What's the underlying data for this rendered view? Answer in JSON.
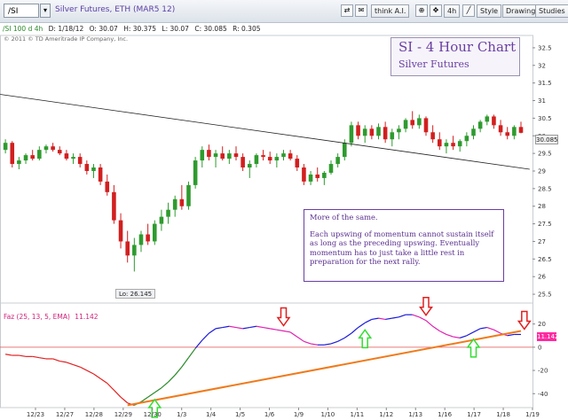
{
  "toolbar": {
    "symbol": "/SI",
    "description": "Silver Futures, ETH (MAR5 12)",
    "thinkai_label": "think A.I.",
    "period_label": "4h",
    "style_label": "Style",
    "drawings_label": "Drawings",
    "studies_label": "Studies"
  },
  "infobar": {
    "symbol_period": "/SI 100 d 4h",
    "date": "D: 1/18/12",
    "open": "O: 30.07",
    "high": "H: 30.375",
    "low": "L: 30.07",
    "close": "C: 30.085",
    "range": "R: 0.305"
  },
  "copyright": "© 2011 © TD Ameritrade IP Company, Inc.",
  "title": {
    "main": "SI - 4 Hour Chart",
    "sub": "Silver Futures"
  },
  "note": {
    "p1": "More of the same.",
    "p2": "Each upswing of momentum cannot sustain itself as long as the preceding upswing. Eventually momentum has to just take a little rest in preparation for the next rally."
  },
  "price_tag": "30.085",
  "lo_label": "Lo: 26.145",
  "indicator": {
    "label": "Faz (25, 13, 5, EMA)",
    "value_text": "11.142",
    "value_tag": "11.142"
  },
  "colors": {
    "up_candle": "#2e9b2e",
    "down_candle": "#d21f1f",
    "trendline": "#222222",
    "momentum_trend": "#f07a1a",
    "momentum_blue": "#1a1ad8",
    "momentum_magenta": "#e020b0",
    "momentum_red": "#e02020",
    "momentum_green": "#2a8a2a",
    "up_arrow": "#33dd33",
    "down_arrow": "#e02020",
    "zero_line": "#e05050"
  },
  "chart_data": [
    {
      "type": "candlestick",
      "title": "SI - 4 Hour Chart",
      "subtitle": "Silver Futures",
      "y_ticks": [
        "32.5",
        "32",
        "31.5",
        "31",
        "30.5",
        "30",
        "29.5",
        "29",
        "28.5",
        "28",
        "27.5",
        "27",
        "26.5",
        "26",
        "25.5"
      ],
      "ylim": [
        25.3,
        32.8
      ],
      "x_ticks": [
        "12/23",
        "12/27",
        "12/28",
        "12/29",
        "12/30",
        "1/3",
        "1/4",
        "1/5",
        "1/6",
        "1/9",
        "1/10",
        "1/11",
        "1/12",
        "1/13",
        "1/16",
        "1/17",
        "1/18",
        "1/19"
      ],
      "low_annotation": "Lo: 26.145",
      "last_price": "30.085",
      "candles": [
        [
          29.6,
          29.9,
          29.5,
          29.8
        ],
        [
          29.8,
          29.85,
          29.1,
          29.2
        ],
        [
          29.2,
          29.4,
          29.05,
          29.3
        ],
        [
          29.3,
          29.5,
          29.2,
          29.45
        ],
        [
          29.45,
          29.6,
          29.3,
          29.35
        ],
        [
          29.35,
          29.7,
          29.3,
          29.6
        ],
        [
          29.6,
          29.75,
          29.5,
          29.7
        ],
        [
          29.7,
          29.8,
          29.55,
          29.6
        ],
        [
          29.6,
          29.7,
          29.45,
          29.5
        ],
        [
          29.5,
          29.6,
          29.3,
          29.35
        ],
        [
          29.35,
          29.5,
          29.2,
          29.4
        ],
        [
          29.4,
          29.5,
          29.1,
          29.2
        ],
        [
          29.2,
          29.3,
          28.9,
          29.0
        ],
        [
          29.0,
          29.2,
          28.8,
          29.1
        ],
        [
          29.1,
          29.2,
          28.6,
          28.7
        ],
        [
          28.7,
          28.9,
          28.3,
          28.4
        ],
        [
          28.4,
          28.6,
          27.5,
          27.6
        ],
        [
          27.6,
          27.8,
          26.8,
          27.0
        ],
        [
          27.0,
          27.3,
          26.4,
          26.6
        ],
        [
          26.6,
          27.1,
          26.145,
          26.9
        ],
        [
          26.9,
          27.3,
          26.7,
          27.2
        ],
        [
          27.2,
          27.5,
          26.9,
          27.0
        ],
        [
          27.0,
          27.6,
          26.9,
          27.5
        ],
        [
          27.5,
          27.9,
          27.3,
          27.7
        ],
        [
          27.7,
          28.1,
          27.5,
          27.9
        ],
        [
          27.9,
          28.3,
          27.7,
          28.2
        ],
        [
          28.2,
          28.6,
          27.9,
          28.0
        ],
        [
          28.0,
          28.7,
          27.9,
          28.6
        ],
        [
          28.6,
          29.4,
          28.5,
          29.3
        ],
        [
          29.3,
          29.7,
          29.1,
          29.6
        ],
        [
          29.6,
          29.75,
          29.3,
          29.4
        ],
        [
          29.4,
          29.6,
          29.1,
          29.5
        ],
        [
          29.5,
          29.7,
          29.3,
          29.35
        ],
        [
          29.35,
          29.6,
          29.2,
          29.5
        ],
        [
          29.5,
          29.7,
          29.3,
          29.4
        ],
        [
          29.4,
          29.5,
          29.0,
          29.1
        ],
        [
          29.1,
          29.3,
          28.8,
          29.2
        ],
        [
          29.2,
          29.5,
          29.1,
          29.45
        ],
        [
          29.45,
          29.6,
          29.3,
          29.4
        ],
        [
          29.4,
          29.55,
          29.2,
          29.3
        ],
        [
          29.3,
          29.5,
          29.1,
          29.4
        ],
        [
          29.4,
          29.6,
          29.3,
          29.5
        ],
        [
          29.5,
          29.6,
          29.3,
          29.35
        ],
        [
          29.35,
          29.45,
          29.0,
          29.1
        ],
        [
          29.1,
          29.2,
          28.6,
          28.7
        ],
        [
          28.7,
          29.0,
          28.6,
          28.9
        ],
        [
          28.9,
          29.1,
          28.7,
          28.8
        ],
        [
          28.8,
          29.0,
          28.6,
          28.95
        ],
        [
          28.95,
          29.3,
          28.9,
          29.2
        ],
        [
          29.2,
          29.5,
          29.1,
          29.4
        ],
        [
          29.4,
          29.9,
          29.3,
          29.8
        ],
        [
          29.8,
          30.4,
          29.7,
          30.3
        ],
        [
          30.3,
          30.4,
          29.9,
          30.0
        ],
        [
          30.0,
          30.3,
          29.8,
          30.2
        ],
        [
          30.2,
          30.3,
          29.9,
          30.0
        ],
        [
          30.0,
          30.35,
          29.9,
          30.25
        ],
        [
          30.25,
          30.4,
          29.8,
          29.9
        ],
        [
          29.9,
          30.2,
          29.7,
          30.1
        ],
        [
          30.1,
          30.3,
          29.9,
          30.2
        ],
        [
          30.2,
          30.5,
          30.1,
          30.45
        ],
        [
          30.45,
          30.7,
          30.2,
          30.3
        ],
        [
          30.3,
          30.6,
          30.2,
          30.5
        ],
        [
          30.5,
          30.55,
          30.0,
          30.1
        ],
        [
          30.1,
          30.3,
          29.8,
          29.9
        ],
        [
          29.9,
          30.1,
          29.6,
          29.7
        ],
        [
          29.7,
          29.9,
          29.5,
          29.8
        ],
        [
          29.8,
          30.0,
          29.6,
          29.7
        ],
        [
          29.7,
          29.9,
          29.55,
          29.85
        ],
        [
          29.85,
          30.1,
          29.7,
          30.0
        ],
        [
          30.0,
          30.3,
          29.9,
          30.2
        ],
        [
          30.2,
          30.45,
          30.1,
          30.4
        ],
        [
          30.4,
          30.6,
          30.3,
          30.55
        ],
        [
          30.55,
          30.6,
          30.2,
          30.3
        ],
        [
          30.3,
          30.45,
          30.0,
          30.1
        ],
        [
          30.1,
          30.25,
          29.9,
          30.0
        ],
        [
          30.0,
          30.3,
          29.9,
          30.25
        ],
        [
          30.25,
          30.4,
          30.07,
          30.085
        ]
      ],
      "trendline": {
        "x": [
          0,
          76.5
        ],
        "y": [
          31.05,
          29.05
        ]
      }
    },
    {
      "type": "line",
      "title": "Faz (25, 13, 5, EMA)",
      "y_ticks": [
        "20",
        "0",
        "-20",
        "-40"
      ],
      "ylim": [
        -52,
        35
      ],
      "current_value": "11.142",
      "values": [
        -6,
        -7,
        -7,
        -8,
        -8,
        -9,
        -10,
        -10,
        -12,
        -13,
        -15,
        -17,
        -20,
        -23,
        -27,
        -31,
        -37,
        -43,
        -48,
        -50,
        -47,
        -43,
        -39,
        -35,
        -30,
        -24,
        -17,
        -9,
        -1,
        6,
        12,
        16,
        17,
        18,
        17,
        16,
        17,
        18,
        17,
        16,
        15,
        14,
        13,
        9,
        5,
        3,
        2,
        2,
        3,
        5,
        8,
        12,
        17,
        21,
        24,
        25,
        24,
        25,
        26,
        28,
        28,
        26,
        23,
        18,
        14,
        11,
        9,
        8,
        10,
        13,
        16,
        17,
        15,
        12,
        10,
        11,
        11
      ],
      "trend": {
        "x": [
          18,
          76
        ],
        "y": [
          -50,
          14
        ]
      },
      "arrows": [
        {
          "dir": "up",
          "i": 22
        },
        {
          "dir": "down",
          "i": 41
        },
        {
          "dir": "up",
          "i": 53
        },
        {
          "dir": "down",
          "i": 62
        },
        {
          "dir": "up",
          "i": 69
        },
        {
          "dir": "down",
          "i": 76.5
        }
      ]
    }
  ]
}
